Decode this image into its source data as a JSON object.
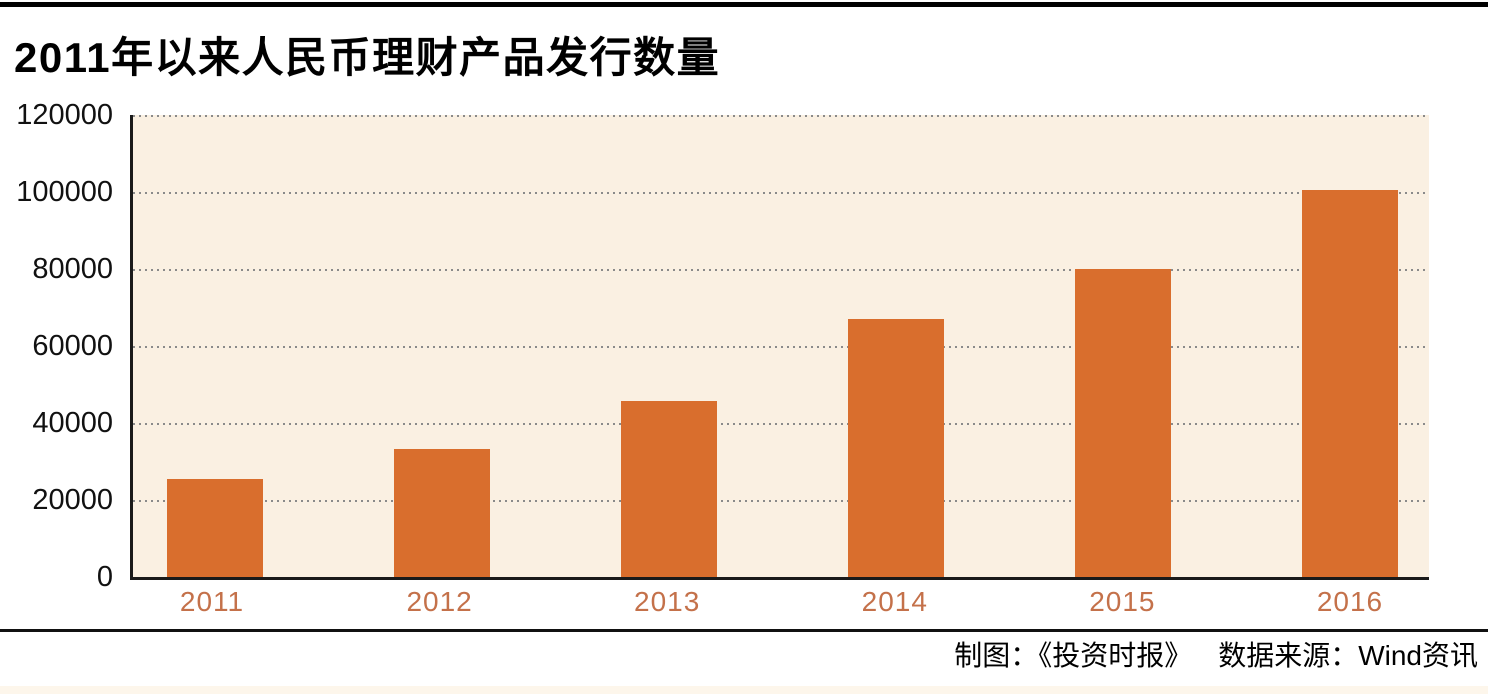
{
  "page": {
    "title": "2011年以来人民币理财产品发行数量",
    "footer": {
      "credit": "制图：《投资时报》",
      "source": "数据来源：Wind资讯"
    }
  },
  "colors": {
    "bar": "#d96e2d",
    "x_label": "#c4714a",
    "plot_bg": "#faf0e2",
    "grid": "#8a8a8a",
    "axis": "#1a1a1a",
    "top_bar": "#000000",
    "bottom_strip": "#fdf6eb"
  },
  "chart_data": {
    "type": "bar",
    "title": "2011年以来人民币理财产品发行数量",
    "categories": [
      "2011",
      "2012",
      "2013",
      "2014",
      "2015",
      "2016"
    ],
    "values": [
      25500,
      33300,
      45800,
      67000,
      80000,
      100500
    ],
    "xlabel": "",
    "ylabel": "",
    "ylim": [
      0,
      120000
    ],
    "yticks": [
      0,
      20000,
      40000,
      60000,
      80000,
      100000,
      120000
    ],
    "ytick_labels": [
      "0",
      "20000",
      "40000",
      "60000",
      "80000",
      "100000",
      "120000"
    ],
    "grid": "horizontal-dotted",
    "legend": "none"
  }
}
